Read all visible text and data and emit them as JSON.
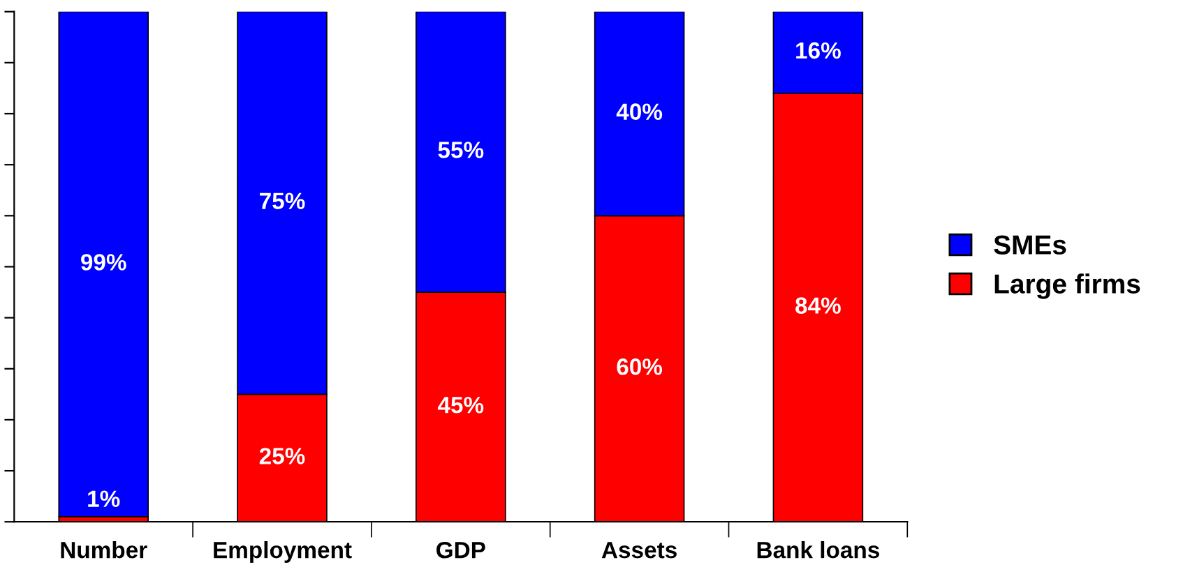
{
  "chart_data": {
    "type": "bar",
    "stacked": true,
    "categories": [
      "Number",
      "Employment",
      "GDP",
      "Assets",
      "Bank loans"
    ],
    "series": [
      {
        "name": "Large firms",
        "color": "#ff0000",
        "values": [
          1,
          25,
          45,
          60,
          84
        ],
        "value_labels": [
          "1%",
          "25%",
          "45%",
          "60%",
          "84%"
        ]
      },
      {
        "name": "SMEs",
        "color": "#0000ff",
        "values": [
          99,
          75,
          55,
          40,
          16
        ],
        "value_labels": [
          "99%",
          "75%",
          "55%",
          "40%",
          "16%"
        ]
      }
    ],
    "ylim": [
      0,
      100
    ],
    "yticks": [
      {
        "value": 0,
        "label": null
      },
      {
        "value": 10,
        "label": null
      },
      {
        "value": 20,
        "label": null
      },
      {
        "value": 30,
        "label": null
      },
      {
        "value": 40,
        "label": null
      },
      {
        "value": 50,
        "label": null
      },
      {
        "value": 60,
        "label": null
      },
      {
        "value": 70,
        "label": null
      },
      {
        "value": 80,
        "label": null
      },
      {
        "value": 90,
        "label": null
      },
      {
        "value": 100,
        "label": null
      }
    ],
    "legend": "right",
    "grid": false
  }
}
